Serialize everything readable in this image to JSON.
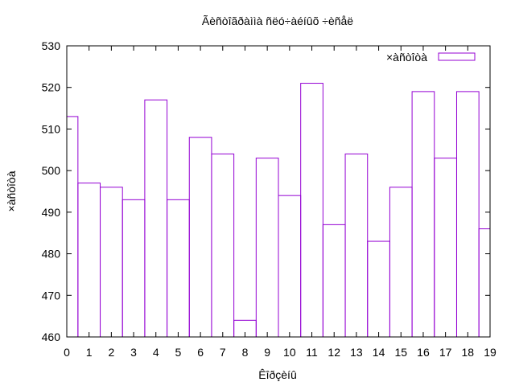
{
  "chart_data": {
    "type": "bar",
    "title": "Ãèñòîãðàììà ñëó÷àéíûõ ÷èñåë",
    "xlabel": "Êîðçèíû",
    "ylabel": "×àñòîòà",
    "legend": {
      "label": "×àñòîòà",
      "placement": "top-right"
    },
    "color": "#9400d3",
    "grid": false,
    "xlim": [
      0,
      19
    ],
    "ylim": [
      460,
      530
    ],
    "xticks": [
      0,
      1,
      2,
      3,
      4,
      5,
      6,
      7,
      8,
      9,
      10,
      11,
      12,
      13,
      14,
      15,
      16,
      17,
      18,
      19
    ],
    "yticks": [
      460,
      470,
      480,
      490,
      500,
      510,
      520,
      530
    ],
    "x": [
      0,
      1,
      2,
      3,
      4,
      5,
      6,
      7,
      8,
      9,
      10,
      11,
      12,
      13,
      14,
      15,
      16,
      17,
      18,
      19
    ],
    "values": [
      513,
      497,
      496,
      493,
      517,
      493,
      508,
      504,
      464,
      503,
      494,
      521,
      487,
      504,
      483,
      496,
      519,
      503,
      519,
      486
    ]
  }
}
